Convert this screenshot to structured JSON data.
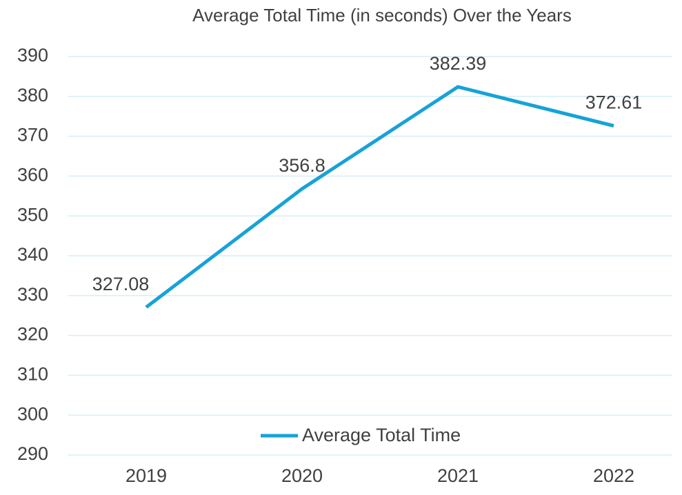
{
  "chart_data": {
    "type": "line",
    "title": "Average Total Time (in seconds) Over the Years",
    "categories": [
      "2019",
      "2020",
      "2021",
      "2022"
    ],
    "series": [
      {
        "name": "Average Total Time",
        "color": "#17a2d8",
        "values": [
          327.08,
          356.8,
          382.39,
          372.61
        ]
      }
    ],
    "ylim": [
      290,
      390
    ],
    "yticks": [
      290,
      300,
      310,
      320,
      330,
      340,
      350,
      360,
      370,
      380,
      390
    ],
    "grid": true,
    "legend": "bottom",
    "data_labels": true
  }
}
